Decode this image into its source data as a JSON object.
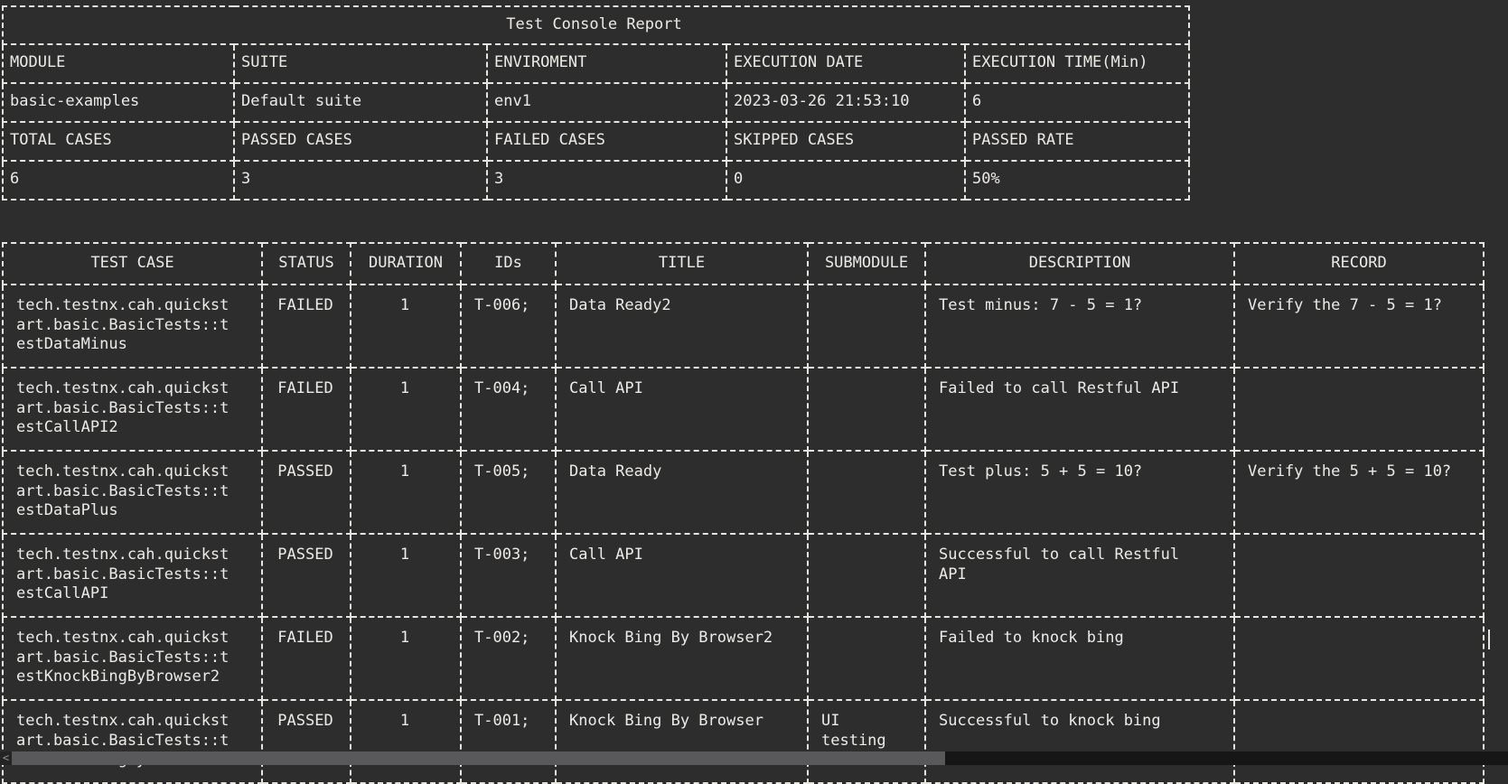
{
  "theme": {
    "background": "#2e2d2e",
    "text": "#edebe6",
    "border": "#e7e5e0",
    "scrollbar_thumb": "#59585a",
    "scrollbar_track": "#161616"
  },
  "summary_table": {
    "title": "Test Console Report",
    "info_headers": [
      "MODULE",
      "SUITE",
      "ENVIROMENT",
      "EXECUTION DATE",
      "EXECUTION TIME(Min)"
    ],
    "info_values": [
      "basic-examples",
      "Default suite",
      "env1",
      "2023-03-26 21:53:10",
      "6"
    ],
    "stat_headers": [
      "TOTAL CASES",
      "PASSED CASES",
      "FAILED CASES",
      "SKIPPED CASES",
      "PASSED RATE"
    ],
    "stat_values": [
      "6",
      "3",
      "3",
      "0",
      "50%"
    ]
  },
  "results_table": {
    "headers": [
      "TEST CASE",
      "STATUS",
      "DURATION",
      "IDs",
      "TITLE",
      "SUBMODULE",
      "DESCRIPTION",
      "RECORD"
    ],
    "rows": [
      {
        "test_case": "tech.testnx.cah.quickst\nart.basic.BasicTests::t\nestDataMinus",
        "status": "FAILED",
        "duration": "1",
        "ids": "T-006;",
        "title": "Data Ready2",
        "submodule": "",
        "description": "Test minus: 7 - 5 = 1?",
        "record": "Verify the 7 - 5 = 1?"
      },
      {
        "test_case": "tech.testnx.cah.quickst\nart.basic.BasicTests::t\nestCallAPI2",
        "status": "FAILED",
        "duration": "1",
        "ids": "T-004;",
        "title": "Call API",
        "submodule": "",
        "description": "Failed to call Restful API",
        "record": ""
      },
      {
        "test_case": "tech.testnx.cah.quickst\nart.basic.BasicTests::t\nestDataPlus",
        "status": "PASSED",
        "duration": "1",
        "ids": "T-005;",
        "title": "Data Ready",
        "submodule": "",
        "description": "Test plus: 5 + 5 = 10?",
        "record": "Verify the 5 + 5 = 10?"
      },
      {
        "test_case": "tech.testnx.cah.quickst\nart.basic.BasicTests::t\nestCallAPI",
        "status": "PASSED",
        "duration": "1",
        "ids": "T-003;",
        "title": "Call API",
        "submodule": "",
        "description": "Successful to call Restful\nAPI",
        "record": ""
      },
      {
        "test_case": "tech.testnx.cah.quickst\nart.basic.BasicTests::t\nestKnockBingByBrowser2",
        "status": "FAILED",
        "duration": "1",
        "ids": "T-002;",
        "title": "Knock Bing By Browser2",
        "submodule": "",
        "description": "Failed to knock bing",
        "record": ""
      },
      {
        "test_case": "tech.testnx.cah.quickst\nart.basic.BasicTests::t\nestKnockBingByBrowser",
        "status": "PASSED",
        "duration": "1",
        "ids": "T-001;",
        "title": "Knock Bing By Browser",
        "submodule": "UI\ntesting",
        "description": "Successful to knock bing",
        "record": ""
      }
    ]
  },
  "scrollbar": {
    "left_arrow": "<"
  }
}
